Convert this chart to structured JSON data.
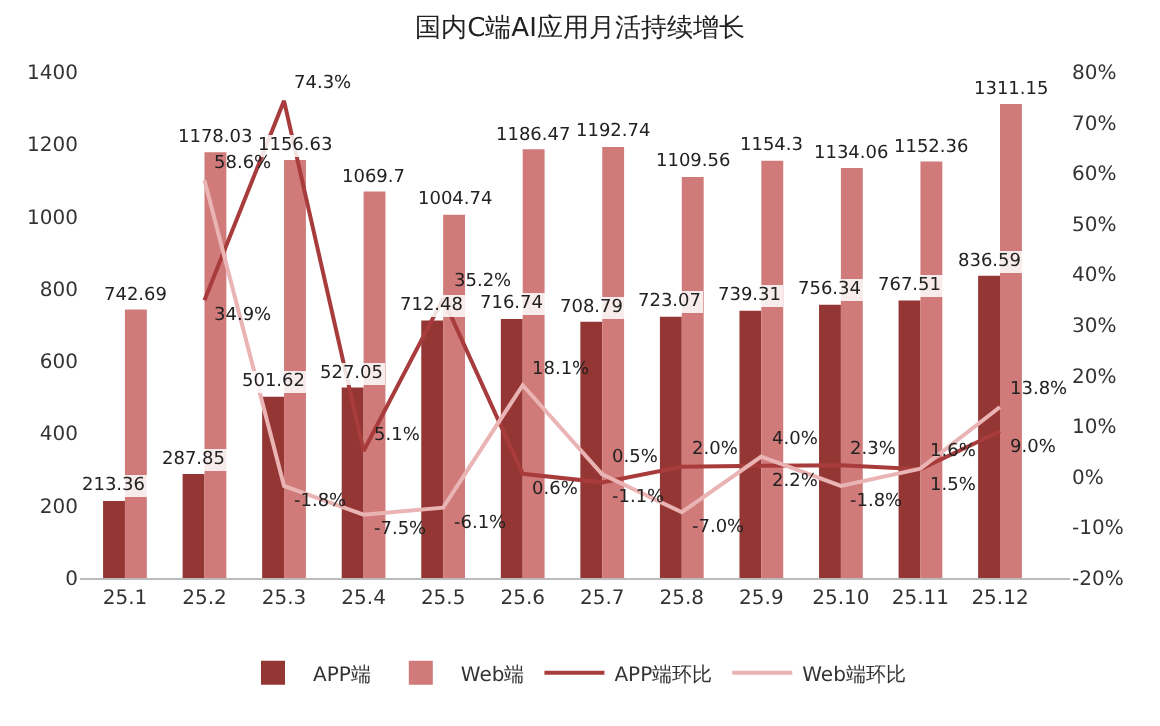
{
  "chart_data": {
    "type": "bar",
    "title": "国内C端AI应用月活持续增长",
    "categories": [
      "25.1",
      "25.2",
      "25.3",
      "25.4",
      "25.5",
      "25.6",
      "25.7",
      "25.8",
      "25.9",
      "25.10",
      "25.11",
      "25.12"
    ],
    "series": [
      {
        "name": "APP端",
        "color": "#943634",
        "values": [
          213.36,
          287.85,
          501.62,
          527.05,
          712.48,
          716.74,
          708.79,
          723.07,
          739.31,
          756.34,
          767.51,
          836.59
        ]
      },
      {
        "name": "Web端",
        "color": "#d07a7a",
        "values": [
          742.69,
          1178.03,
          1156.63,
          1069.7,
          1004.74,
          1186.47,
          1192.74,
          1109.56,
          1154.3,
          1134.06,
          1152.36,
          1311.15
        ]
      },
      {
        "name": "APP端环比",
        "type": "line",
        "axis": "y2",
        "color": "#a83c3c",
        "values": [
          null,
          34.9,
          74.3,
          5.1,
          35.2,
          0.6,
          -1.1,
          2.0,
          2.2,
          2.3,
          1.5,
          9.0
        ],
        "value_labels": [
          null,
          "34.9%",
          "74.3%",
          "5.1%",
          "35.2%",
          "0.6%",
          "-1.1%",
          "2.0%",
          "2.2%",
          "2.3%",
          "1.5%",
          "9.0%"
        ]
      },
      {
        "name": "Web端环比",
        "type": "line",
        "axis": "y2",
        "color": "#eab4b4",
        "values": [
          null,
          58.6,
          -1.8,
          -7.5,
          -6.1,
          18.1,
          0.5,
          -7.0,
          4.0,
          -1.8,
          1.6,
          13.8
        ],
        "value_labels": [
          null,
          "58.6%",
          "-1.8%",
          "-7.5%",
          "-6.1%",
          "18.1%",
          "0.5%",
          "-7.0%",
          "4.0%",
          "-1.8%",
          "1.6%",
          "13.8%"
        ]
      }
    ],
    "data_labels": true,
    "ylim": [
      0,
      1400
    ],
    "yticks": [
      0,
      200,
      400,
      600,
      800,
      1000,
      1200,
      1400
    ],
    "y2lim": [
      -20,
      80
    ],
    "y2ticks": [
      {
        "value": -20,
        "label": "-20%"
      },
      {
        "value": -10,
        "label": "-10%"
      },
      {
        "value": 0,
        "label": "0%"
      },
      {
        "value": 10,
        "label": "10%"
      },
      {
        "value": 20,
        "label": "20%"
      },
      {
        "value": 30,
        "label": "30%"
      },
      {
        "value": 40,
        "label": "40%"
      },
      {
        "value": 50,
        "label": "50%"
      },
      {
        "value": 60,
        "label": "60%"
      },
      {
        "value": 70,
        "label": "70%"
      },
      {
        "value": 80,
        "label": "80%"
      }
    ],
    "legend": "bottom",
    "grid": false,
    "marker": "none"
  }
}
